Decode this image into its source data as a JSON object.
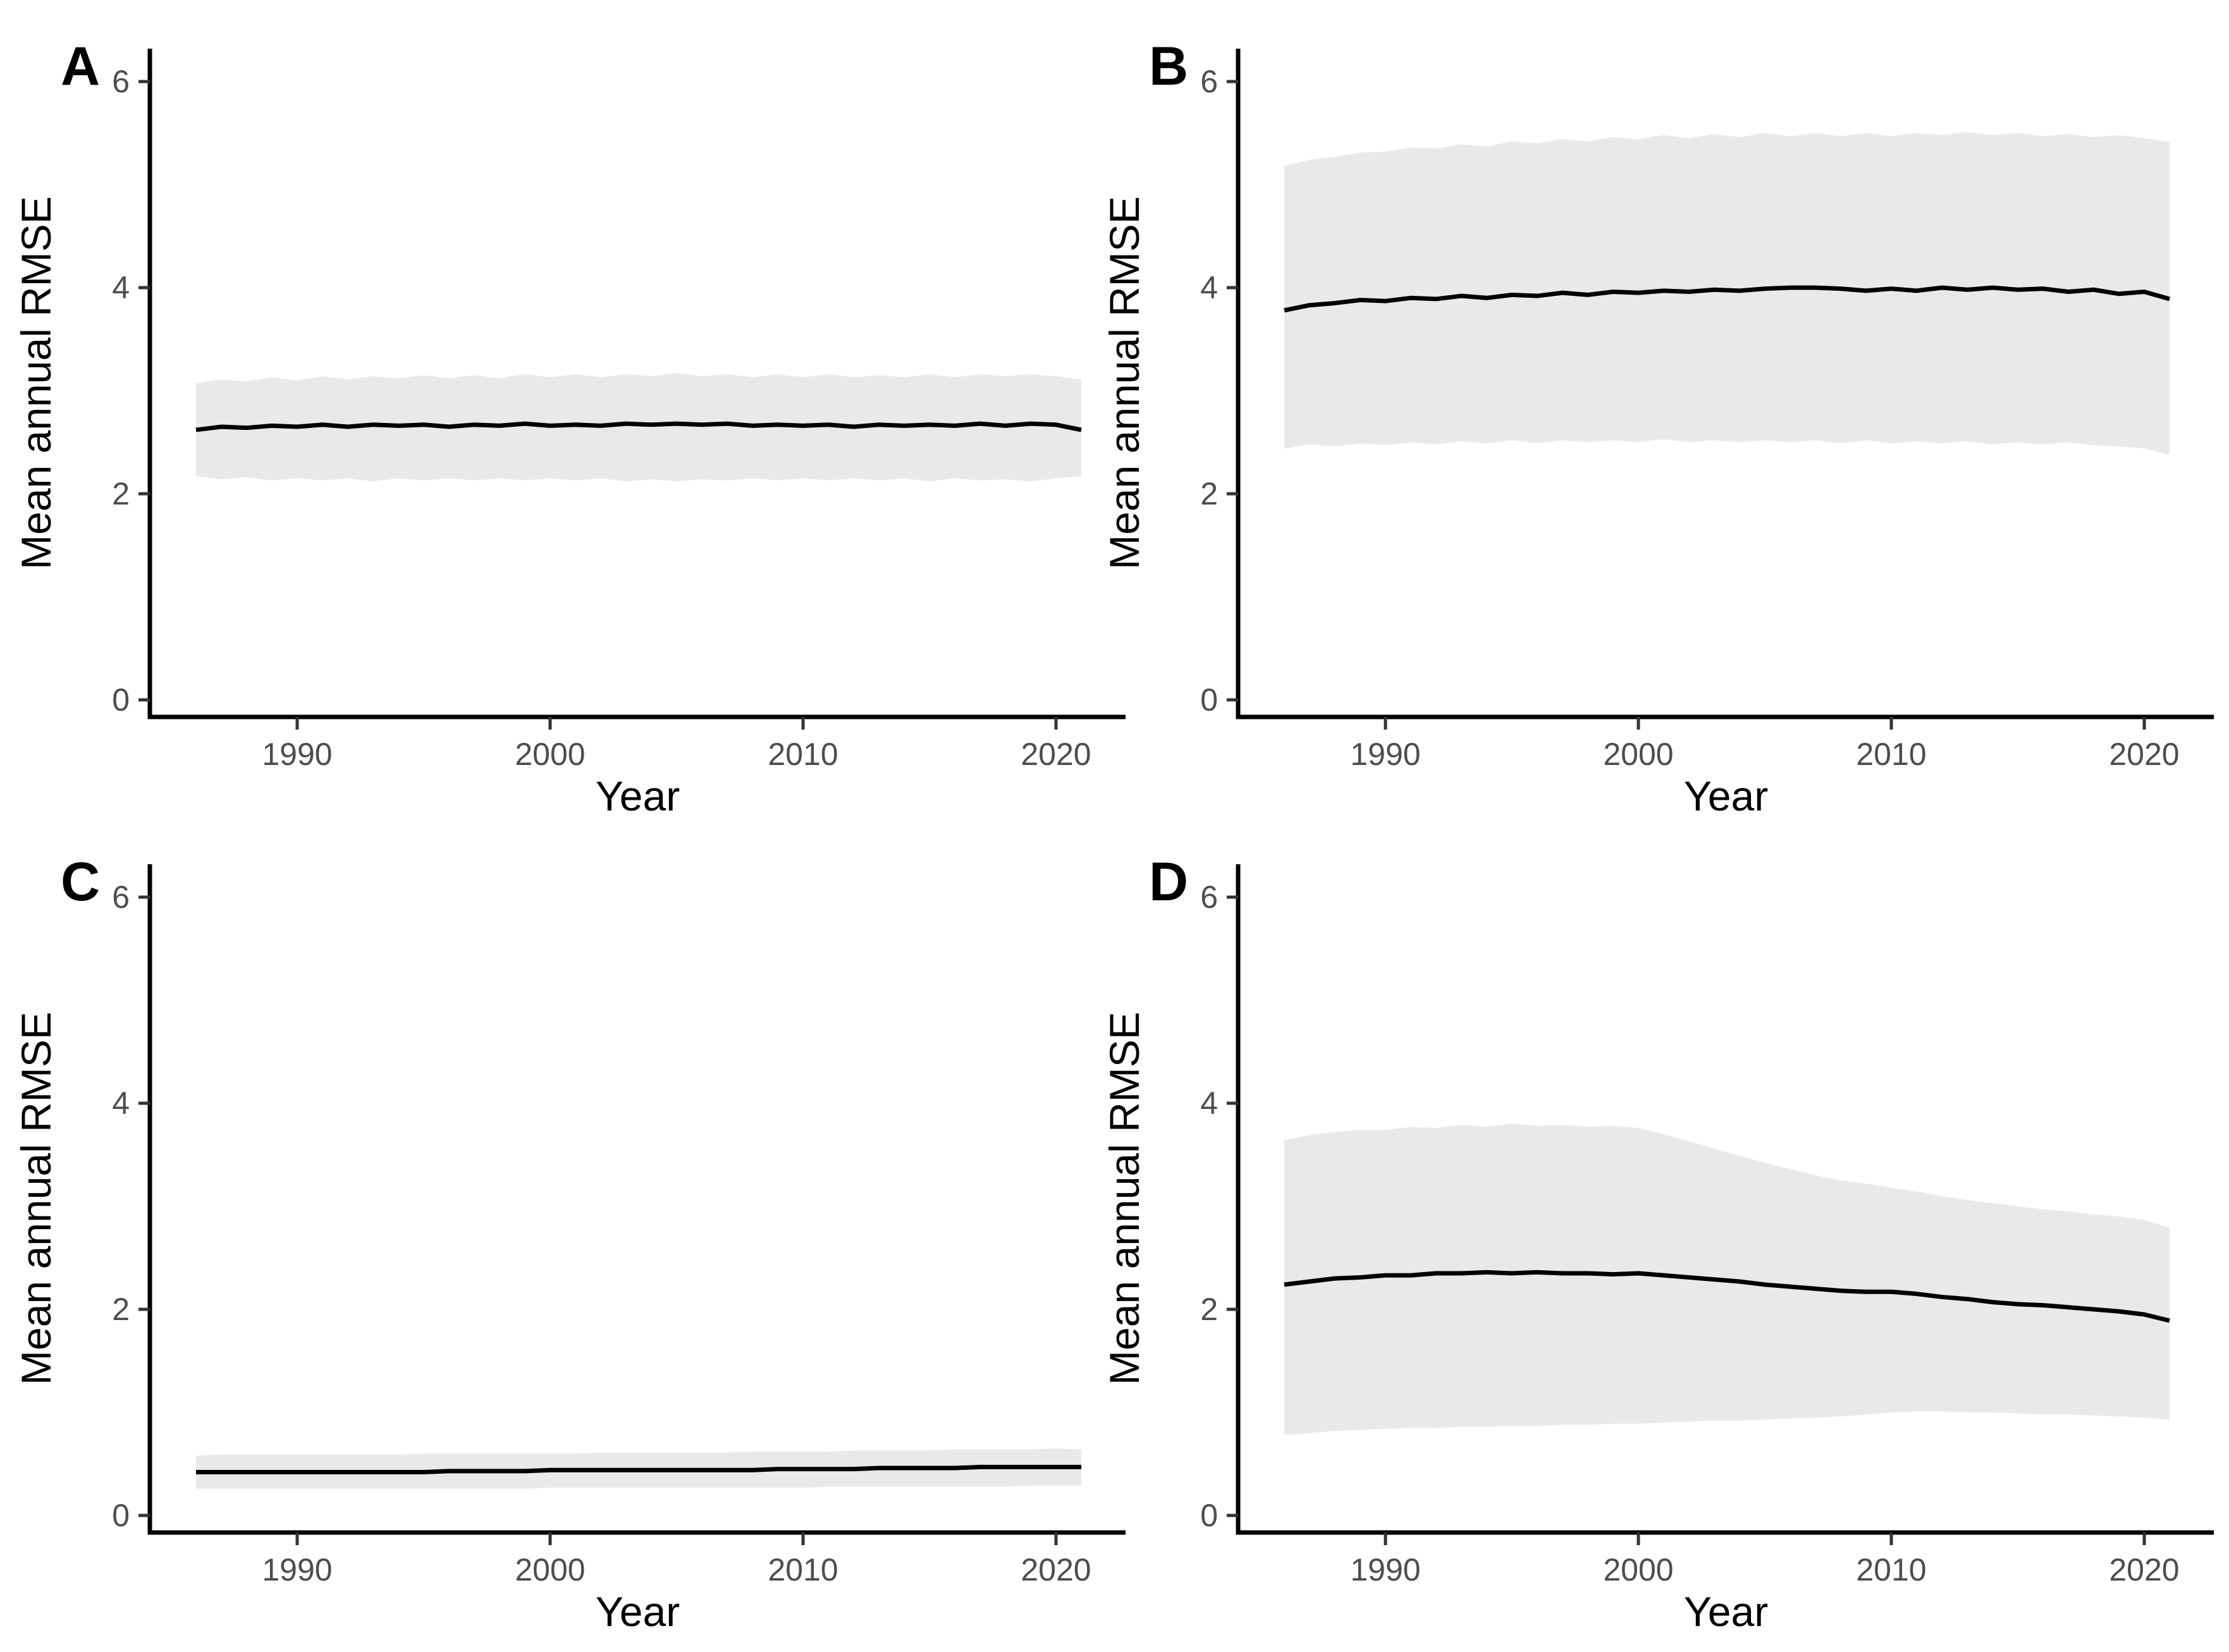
{
  "figure": {
    "background": "#ffffff",
    "colors": {
      "mean_line": "#000000",
      "ribbon_fill": "#e9e9e9",
      "axis_line": "#000000",
      "tick_mark": "#333333",
      "tick_label": "#4d4d4d"
    },
    "x_axis_label": "Year",
    "y_axis_label": "Mean annual RMSE",
    "panel_letters": [
      "A",
      "B",
      "C",
      "D"
    ]
  },
  "chart_data": [
    {
      "panel": "A",
      "type": "line",
      "title": "",
      "xlabel": "Year",
      "ylabel": "Mean annual RMSE",
      "legend": "none",
      "grid": false,
      "xlim": [
        1986,
        2021
      ],
      "ylim": [
        0,
        6
      ],
      "xticks": [
        1990,
        2000,
        2010,
        2020
      ],
      "yticks": [
        0,
        2,
        4,
        6
      ],
      "x": [
        1986,
        1987,
        1988,
        1989,
        1990,
        1991,
        1992,
        1993,
        1994,
        1995,
        1996,
        1997,
        1998,
        1999,
        2000,
        2001,
        2002,
        2003,
        2004,
        2005,
        2006,
        2007,
        2008,
        2009,
        2010,
        2011,
        2012,
        2013,
        2014,
        2015,
        2016,
        2017,
        2018,
        2019,
        2020,
        2021
      ],
      "series": [
        {
          "name": "mean",
          "values": [
            2.62,
            2.65,
            2.64,
            2.66,
            2.65,
            2.67,
            2.65,
            2.67,
            2.66,
            2.67,
            2.65,
            2.67,
            2.66,
            2.68,
            2.66,
            2.67,
            2.66,
            2.68,
            2.67,
            2.68,
            2.67,
            2.68,
            2.66,
            2.67,
            2.66,
            2.67,
            2.65,
            2.67,
            2.66,
            2.67,
            2.66,
            2.68,
            2.66,
            2.68,
            2.67,
            2.62
          ]
        },
        {
          "name": "band_lower",
          "values": [
            2.17,
            2.14,
            2.16,
            2.13,
            2.15,
            2.13,
            2.15,
            2.12,
            2.15,
            2.13,
            2.15,
            2.13,
            2.15,
            2.13,
            2.15,
            2.13,
            2.15,
            2.12,
            2.14,
            2.12,
            2.14,
            2.13,
            2.15,
            2.13,
            2.15,
            2.13,
            2.15,
            2.13,
            2.15,
            2.12,
            2.15,
            2.13,
            2.14,
            2.12,
            2.15,
            2.17
          ]
        },
        {
          "name": "band_upper",
          "values": [
            3.07,
            3.11,
            3.09,
            3.13,
            3.1,
            3.14,
            3.11,
            3.14,
            3.12,
            3.15,
            3.12,
            3.15,
            3.12,
            3.16,
            3.13,
            3.16,
            3.13,
            3.16,
            3.14,
            3.17,
            3.14,
            3.16,
            3.13,
            3.16,
            3.13,
            3.16,
            3.13,
            3.15,
            3.13,
            3.16,
            3.13,
            3.16,
            3.14,
            3.16,
            3.14,
            3.11
          ]
        }
      ]
    },
    {
      "panel": "B",
      "type": "line",
      "title": "",
      "xlabel": "Year",
      "ylabel": "Mean annual RMSE",
      "legend": "none",
      "grid": false,
      "xlim": [
        1986,
        2021
      ],
      "ylim": [
        0,
        6
      ],
      "xticks": [
        1990,
        2000,
        2010,
        2020
      ],
      "yticks": [
        0,
        2,
        4,
        6
      ],
      "x": [
        1986,
        1987,
        1988,
        1989,
        1990,
        1991,
        1992,
        1993,
        1994,
        1995,
        1996,
        1997,
        1998,
        1999,
        2000,
        2001,
        2002,
        2003,
        2004,
        2005,
        2006,
        2007,
        2008,
        2009,
        2010,
        2011,
        2012,
        2013,
        2014,
        2015,
        2016,
        2017,
        2018,
        2019,
        2020,
        2021
      ],
      "series": [
        {
          "name": "mean",
          "values": [
            3.78,
            3.83,
            3.85,
            3.88,
            3.87,
            3.9,
            3.89,
            3.92,
            3.9,
            3.93,
            3.92,
            3.95,
            3.93,
            3.96,
            3.95,
            3.97,
            3.96,
            3.98,
            3.97,
            3.99,
            4.0,
            4.0,
            3.99,
            3.97,
            3.99,
            3.97,
            4.0,
            3.98,
            4.0,
            3.98,
            3.99,
            3.96,
            3.98,
            3.94,
            3.96,
            3.89
          ]
        },
        {
          "name": "band_lower",
          "values": [
            2.44,
            2.48,
            2.46,
            2.49,
            2.47,
            2.5,
            2.48,
            2.51,
            2.49,
            2.52,
            2.49,
            2.52,
            2.5,
            2.52,
            2.5,
            2.53,
            2.5,
            2.52,
            2.5,
            2.52,
            2.5,
            2.52,
            2.49,
            2.52,
            2.49,
            2.51,
            2.49,
            2.51,
            2.48,
            2.5,
            2.48,
            2.5,
            2.47,
            2.46,
            2.44,
            2.38
          ]
        },
        {
          "name": "band_upper",
          "values": [
            5.18,
            5.24,
            5.27,
            5.31,
            5.32,
            5.36,
            5.35,
            5.39,
            5.37,
            5.42,
            5.4,
            5.44,
            5.42,
            5.46,
            5.44,
            5.48,
            5.45,
            5.49,
            5.46,
            5.5,
            5.47,
            5.5,
            5.47,
            5.5,
            5.47,
            5.5,
            5.48,
            5.51,
            5.48,
            5.5,
            5.47,
            5.49,
            5.46,
            5.48,
            5.45,
            5.41
          ]
        }
      ]
    },
    {
      "panel": "C",
      "type": "line",
      "title": "",
      "xlabel": "Year",
      "ylabel": "Mean annual RMSE",
      "legend": "none",
      "grid": false,
      "xlim": [
        1986,
        2021
      ],
      "ylim": [
        0,
        6
      ],
      "xticks": [
        1990,
        2000,
        2010,
        2020
      ],
      "yticks": [
        0,
        2,
        4,
        6
      ],
      "x": [
        1986,
        1987,
        1988,
        1989,
        1990,
        1991,
        1992,
        1993,
        1994,
        1995,
        1996,
        1997,
        1998,
        1999,
        2000,
        2001,
        2002,
        2003,
        2004,
        2005,
        2006,
        2007,
        2008,
        2009,
        2010,
        2011,
        2012,
        2013,
        2014,
        2015,
        2016,
        2017,
        2018,
        2019,
        2020,
        2021
      ],
      "series": [
        {
          "name": "mean",
          "values": [
            0.42,
            0.42,
            0.42,
            0.42,
            0.42,
            0.42,
            0.42,
            0.42,
            0.42,
            0.42,
            0.43,
            0.43,
            0.43,
            0.43,
            0.44,
            0.44,
            0.44,
            0.44,
            0.44,
            0.44,
            0.44,
            0.44,
            0.44,
            0.45,
            0.45,
            0.45,
            0.45,
            0.46,
            0.46,
            0.46,
            0.46,
            0.47,
            0.47,
            0.47,
            0.47,
            0.47
          ]
        },
        {
          "name": "band_lower",
          "values": [
            0.26,
            0.26,
            0.26,
            0.26,
            0.26,
            0.26,
            0.26,
            0.26,
            0.26,
            0.26,
            0.26,
            0.26,
            0.26,
            0.26,
            0.27,
            0.27,
            0.27,
            0.27,
            0.27,
            0.27,
            0.27,
            0.27,
            0.27,
            0.27,
            0.27,
            0.28,
            0.28,
            0.28,
            0.28,
            0.28,
            0.28,
            0.28,
            0.28,
            0.29,
            0.29,
            0.29
          ]
        },
        {
          "name": "band_upper",
          "values": [
            0.58,
            0.59,
            0.59,
            0.59,
            0.59,
            0.59,
            0.59,
            0.59,
            0.59,
            0.6,
            0.6,
            0.6,
            0.6,
            0.6,
            0.6,
            0.6,
            0.61,
            0.61,
            0.61,
            0.61,
            0.61,
            0.61,
            0.62,
            0.62,
            0.62,
            0.62,
            0.63,
            0.63,
            0.63,
            0.63,
            0.64,
            0.64,
            0.64,
            0.64,
            0.65,
            0.64
          ]
        }
      ]
    },
    {
      "panel": "D",
      "type": "line",
      "title": "",
      "xlabel": "Year",
      "ylabel": "Mean annual RMSE",
      "legend": "none",
      "grid": false,
      "xlim": [
        1986,
        2021
      ],
      "ylim": [
        0,
        6
      ],
      "xticks": [
        1990,
        2000,
        2010,
        2020
      ],
      "yticks": [
        0,
        2,
        4,
        6
      ],
      "x": [
        1986,
        1987,
        1988,
        1989,
        1990,
        1991,
        1992,
        1993,
        1994,
        1995,
        1996,
        1997,
        1998,
        1999,
        2000,
        2001,
        2002,
        2003,
        2004,
        2005,
        2006,
        2007,
        2008,
        2009,
        2010,
        2011,
        2012,
        2013,
        2014,
        2015,
        2016,
        2017,
        2018,
        2019,
        2020,
        2021
      ],
      "series": [
        {
          "name": "mean",
          "values": [
            2.24,
            2.27,
            2.3,
            2.31,
            2.33,
            2.33,
            2.35,
            2.35,
            2.36,
            2.35,
            2.36,
            2.35,
            2.35,
            2.34,
            2.35,
            2.33,
            2.31,
            2.29,
            2.27,
            2.24,
            2.22,
            2.2,
            2.18,
            2.17,
            2.17,
            2.15,
            2.12,
            2.1,
            2.07,
            2.05,
            2.04,
            2.02,
            2.0,
            1.98,
            1.95,
            1.89
          ]
        },
        {
          "name": "band_lower",
          "values": [
            0.78,
            0.8,
            0.82,
            0.83,
            0.84,
            0.85,
            0.85,
            0.86,
            0.86,
            0.87,
            0.87,
            0.88,
            0.88,
            0.89,
            0.89,
            0.9,
            0.91,
            0.92,
            0.92,
            0.93,
            0.94,
            0.95,
            0.96,
            0.98,
            1.0,
            1.01,
            1.01,
            1.0,
            1.0,
            0.99,
            0.98,
            0.98,
            0.97,
            0.96,
            0.95,
            0.93
          ]
        },
        {
          "name": "band_upper",
          "values": [
            3.64,
            3.69,
            3.72,
            3.74,
            3.74,
            3.77,
            3.76,
            3.79,
            3.77,
            3.8,
            3.78,
            3.79,
            3.77,
            3.78,
            3.76,
            3.7,
            3.63,
            3.56,
            3.49,
            3.42,
            3.36,
            3.3,
            3.25,
            3.22,
            3.18,
            3.14,
            3.1,
            3.06,
            3.03,
            3.0,
            2.97,
            2.95,
            2.92,
            2.9,
            2.87,
            2.79
          ]
        }
      ]
    }
  ]
}
